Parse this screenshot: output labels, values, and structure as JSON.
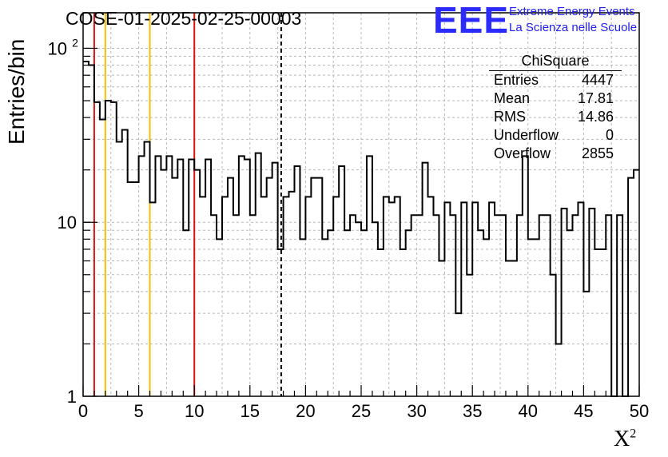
{
  "title": "COSE-01-2025-02-25-00003",
  "logo": {
    "mark": "EEE",
    "line1": "Extreme Energy Events",
    "line2": "La Scienza nelle Scuole",
    "color": "#2b2bff"
  },
  "stats_box": {
    "title": "ChiSquare",
    "rows": [
      {
        "label": "Entries",
        "value": "4447"
      },
      {
        "label": "Mean",
        "value": "17.81"
      },
      {
        "label": "RMS",
        "value": "14.86"
      },
      {
        "label": "Underflow",
        "value": "0"
      },
      {
        "label": "Overflow",
        "value": "2855"
      }
    ]
  },
  "chart_data": {
    "type": "histogram",
    "title": "COSE-01-2025-02-25-00003",
    "xlabel": "X",
    "xlabel_sup": "2",
    "ylabel": "Entries/bin",
    "xlim": [
      0,
      50
    ],
    "ylim": [
      1,
      160
    ],
    "yscale": "log",
    "grid": true,
    "bin_width": 0.5,
    "x_ticks": [
      "0",
      "5",
      "10",
      "15",
      "20",
      "25",
      "30",
      "35",
      "40",
      "45",
      "50"
    ],
    "y_ticks": [
      {
        "value": 1,
        "label": "1"
      },
      {
        "value": 10,
        "label": "10"
      },
      {
        "value": 100,
        "label": "10",
        "sup": "2"
      }
    ],
    "bin_values": [
      84,
      80,
      49,
      39,
      50,
      49,
      29,
      34,
      17,
      17,
      24,
      29,
      13,
      24,
      20,
      24,
      18,
      23,
      9,
      23,
      20,
      14,
      23,
      11,
      8,
      14,
      18,
      11,
      24,
      23,
      11,
      25,
      14,
      18,
      22,
      7,
      14,
      15,
      21,
      8,
      14,
      18,
      18,
      8,
      9,
      14,
      21,
      9,
      11,
      10,
      9,
      24,
      10,
      7,
      14,
      13,
      14,
      7,
      9,
      11,
      11,
      22,
      14,
      11,
      6,
      13,
      11,
      3,
      13,
      5,
      13,
      9,
      8,
      13,
      11,
      11,
      6,
      6,
      11,
      24,
      8,
      8,
      11,
      11,
      5,
      2,
      12,
      9,
      11,
      13,
      4,
      12,
      7,
      7,
      11,
      1,
      11,
      1,
      18,
      20
    ],
    "vertical_lines": [
      {
        "x": 1,
        "color": "#dd1111",
        "style": "solid"
      },
      {
        "x": 2,
        "color": "#f2c200",
        "style": "solid"
      },
      {
        "x": 6,
        "color": "#f2c200",
        "style": "solid"
      },
      {
        "x": 10,
        "color": "#dd1111",
        "style": "solid"
      },
      {
        "x": 17.81,
        "color": "#000000",
        "style": "dashed"
      }
    ]
  }
}
